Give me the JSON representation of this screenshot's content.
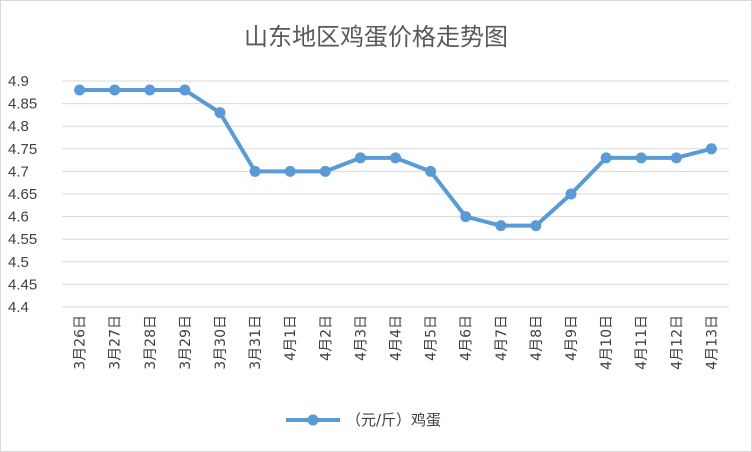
{
  "chart_data": {
    "type": "line",
    "title": "山东地区鸡蛋价格走势图",
    "xlabel": "",
    "ylabel": "",
    "categories": [
      "3月26日",
      "3月27日",
      "3月28日",
      "3月29日",
      "3月30日",
      "3月31日",
      "4月1日",
      "4月2日",
      "4月3日",
      "4月4日",
      "4月5日",
      "4月6日",
      "4月7日",
      "4月8日",
      "4月9日",
      "4月10日",
      "4月11日",
      "4月12日",
      "4月13日"
    ],
    "series": [
      {
        "name": "（元/斤）鸡蛋",
        "values": [
          4.88,
          4.88,
          4.88,
          4.88,
          4.83,
          4.7,
          4.7,
          4.7,
          4.73,
          4.73,
          4.7,
          4.6,
          4.58,
          4.58,
          4.65,
          4.73,
          4.73,
          4.73,
          4.75
        ]
      }
    ],
    "ylim": [
      4.4,
      4.9
    ],
    "yticks": [
      "4.4",
      "4.45",
      "4.5",
      "4.55",
      "4.6",
      "4.65",
      "4.7",
      "4.75",
      "4.8",
      "4.85",
      "4.9"
    ],
    "grid": true,
    "legend_position": "bottom",
    "colors": {
      "series": "#5b9bd5",
      "grid": "#d9d9d9"
    }
  }
}
